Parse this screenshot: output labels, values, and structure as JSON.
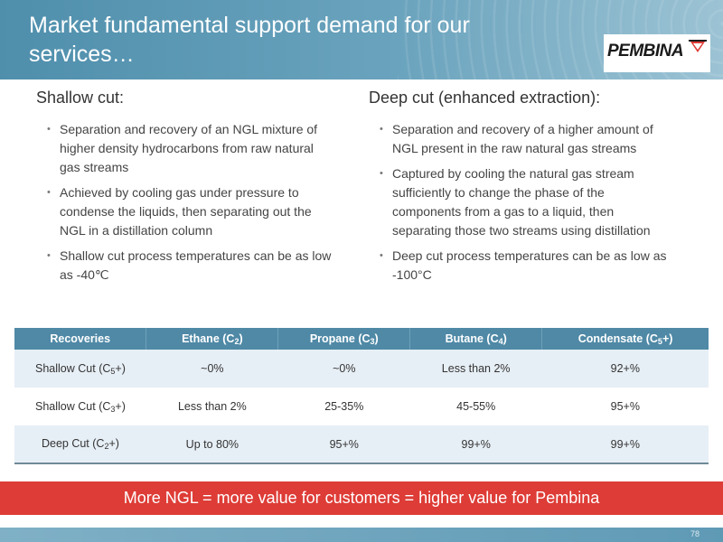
{
  "header": {
    "title": "Market fundamental support demand for our services…",
    "logo_text": "PEMBINA",
    "logo_icon": "pembina-logo-mark"
  },
  "shallow": {
    "heading": "Shallow cut:",
    "bullets": [
      "Separation and recovery of an NGL mixture of higher density hydrocarbons from raw natural gas streams",
      "Achieved by cooling gas under pressure to condense the liquids, then separating out the NGL in a distillation column",
      "Shallow cut process temperatures can be as low as -40℃"
    ]
  },
  "deep": {
    "heading": "Deep cut (enhanced extraction):",
    "bullets": [
      "Separation and recovery of a higher amount of NGL present in the raw natural gas streams",
      "Captured by cooling the natural gas stream sufficiently to change the phase of the components from a gas to a liquid, then separating those two streams using distillation",
      "Deep cut process temperatures can be as low as -100°C"
    ]
  },
  "table": {
    "headers": [
      {
        "text": "Recoveries",
        "sub": "",
        "suffix": ""
      },
      {
        "text": "Ethane (C",
        "sub": "2",
        "suffix": ")"
      },
      {
        "text": "Propane (C",
        "sub": "3",
        "suffix": ")"
      },
      {
        "text": "Butane (C",
        "sub": "4",
        "suffix": ")"
      },
      {
        "text": "Condensate (C",
        "sub": "5",
        "suffix": "+)"
      }
    ],
    "rows": [
      {
        "label": "Shallow Cut (C",
        "label_sub": "5",
        "label_suffix": "+)",
        "values": [
          "~0%",
          "~0%",
          "Less than 2%",
          "92+%"
        ]
      },
      {
        "label": "Shallow Cut (C",
        "label_sub": "3",
        "label_suffix": "+)",
        "values": [
          "Less than 2%",
          "25-35%",
          "45-55%",
          "95+%"
        ]
      },
      {
        "label": "Deep Cut (C",
        "label_sub": "2",
        "label_suffix": "+)",
        "values": [
          "Up to 80%",
          "95+%",
          "99+%",
          "99+%"
        ]
      }
    ]
  },
  "banner": {
    "text": "More NGL = more value for customers = higher value for Pembina"
  },
  "footer": {
    "page_number": "78"
  },
  "colors": {
    "title_band": "#4f8fac",
    "table_header": "#4f89a6",
    "banner": "#de3c36",
    "row_alt": "#e7eff6"
  }
}
